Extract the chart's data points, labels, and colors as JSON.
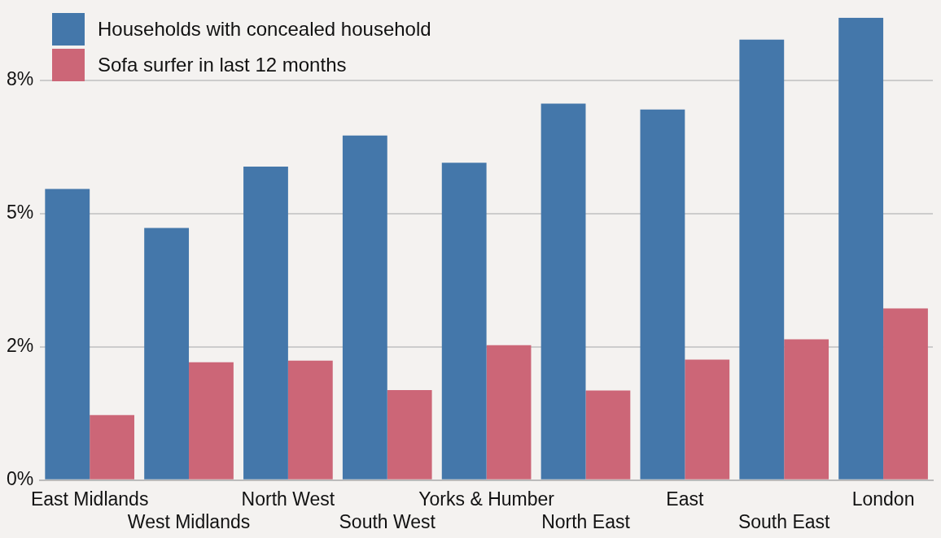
{
  "chart_data": {
    "type": "bar",
    "categories": [
      "East Midlands",
      "West Midlands",
      "North West",
      "South West",
      "Yorks & Humber",
      "North East",
      "East",
      "South East",
      "London"
    ],
    "series": [
      {
        "name": "Households with concealed household",
        "color": "#4477aa",
        "values": [
          5.46,
          4.73,
          5.88,
          6.46,
          5.95,
          7.06,
          6.95,
          8.26,
          8.67
        ]
      },
      {
        "name": "Sofa surfer in last 12 months",
        "color": "#cc6677",
        "values": [
          1.22,
          2.21,
          2.24,
          1.69,
          2.53,
          1.68,
          2.26,
          2.64,
          3.22
        ]
      }
    ],
    "ylim": [
      0,
      8.67
    ],
    "yticks": [
      {
        "value": 0,
        "label": "0%"
      },
      {
        "value": 2.5,
        "label": "2%"
      },
      {
        "value": 5,
        "label": "5%"
      },
      {
        "value": 7.5,
        "label": "8%"
      }
    ],
    "grid": "y",
    "legend": "top left"
  }
}
